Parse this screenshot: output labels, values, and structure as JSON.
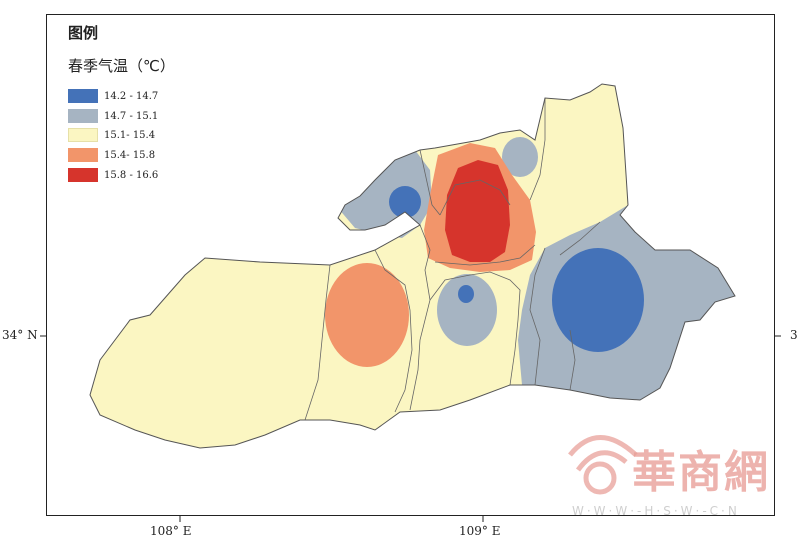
{
  "legend": {
    "title": "图例",
    "subtitle": "春季气温（℃）",
    "items": [
      {
        "label": "14.2 - 14.7",
        "color": "#4472b8"
      },
      {
        "label": "14.7 - 15.1",
        "color": "#a6b4c2"
      },
      {
        "label": "15.1- 15.4",
        "color": "#fbf6c2"
      },
      {
        "label": "15.4- 15.8",
        "color": "#f2956a"
      },
      {
        "label": "15.8 - 16.6",
        "color": "#d6342c"
      }
    ]
  },
  "axes": {
    "x_ticks": [
      {
        "label": "108° E",
        "value": 108
      },
      {
        "label": "109° E",
        "value": 109
      }
    ],
    "y_ticks": [
      {
        "label": "34° N",
        "value": 34
      }
    ],
    "y_tick_right_fragment": "3"
  },
  "watermark": {
    "brand": "華商網",
    "url": "W·W·W·-H·S·W·-C·N"
  },
  "colors": {
    "region_fill": "#fbf6c2",
    "boundary": "#666666"
  }
}
